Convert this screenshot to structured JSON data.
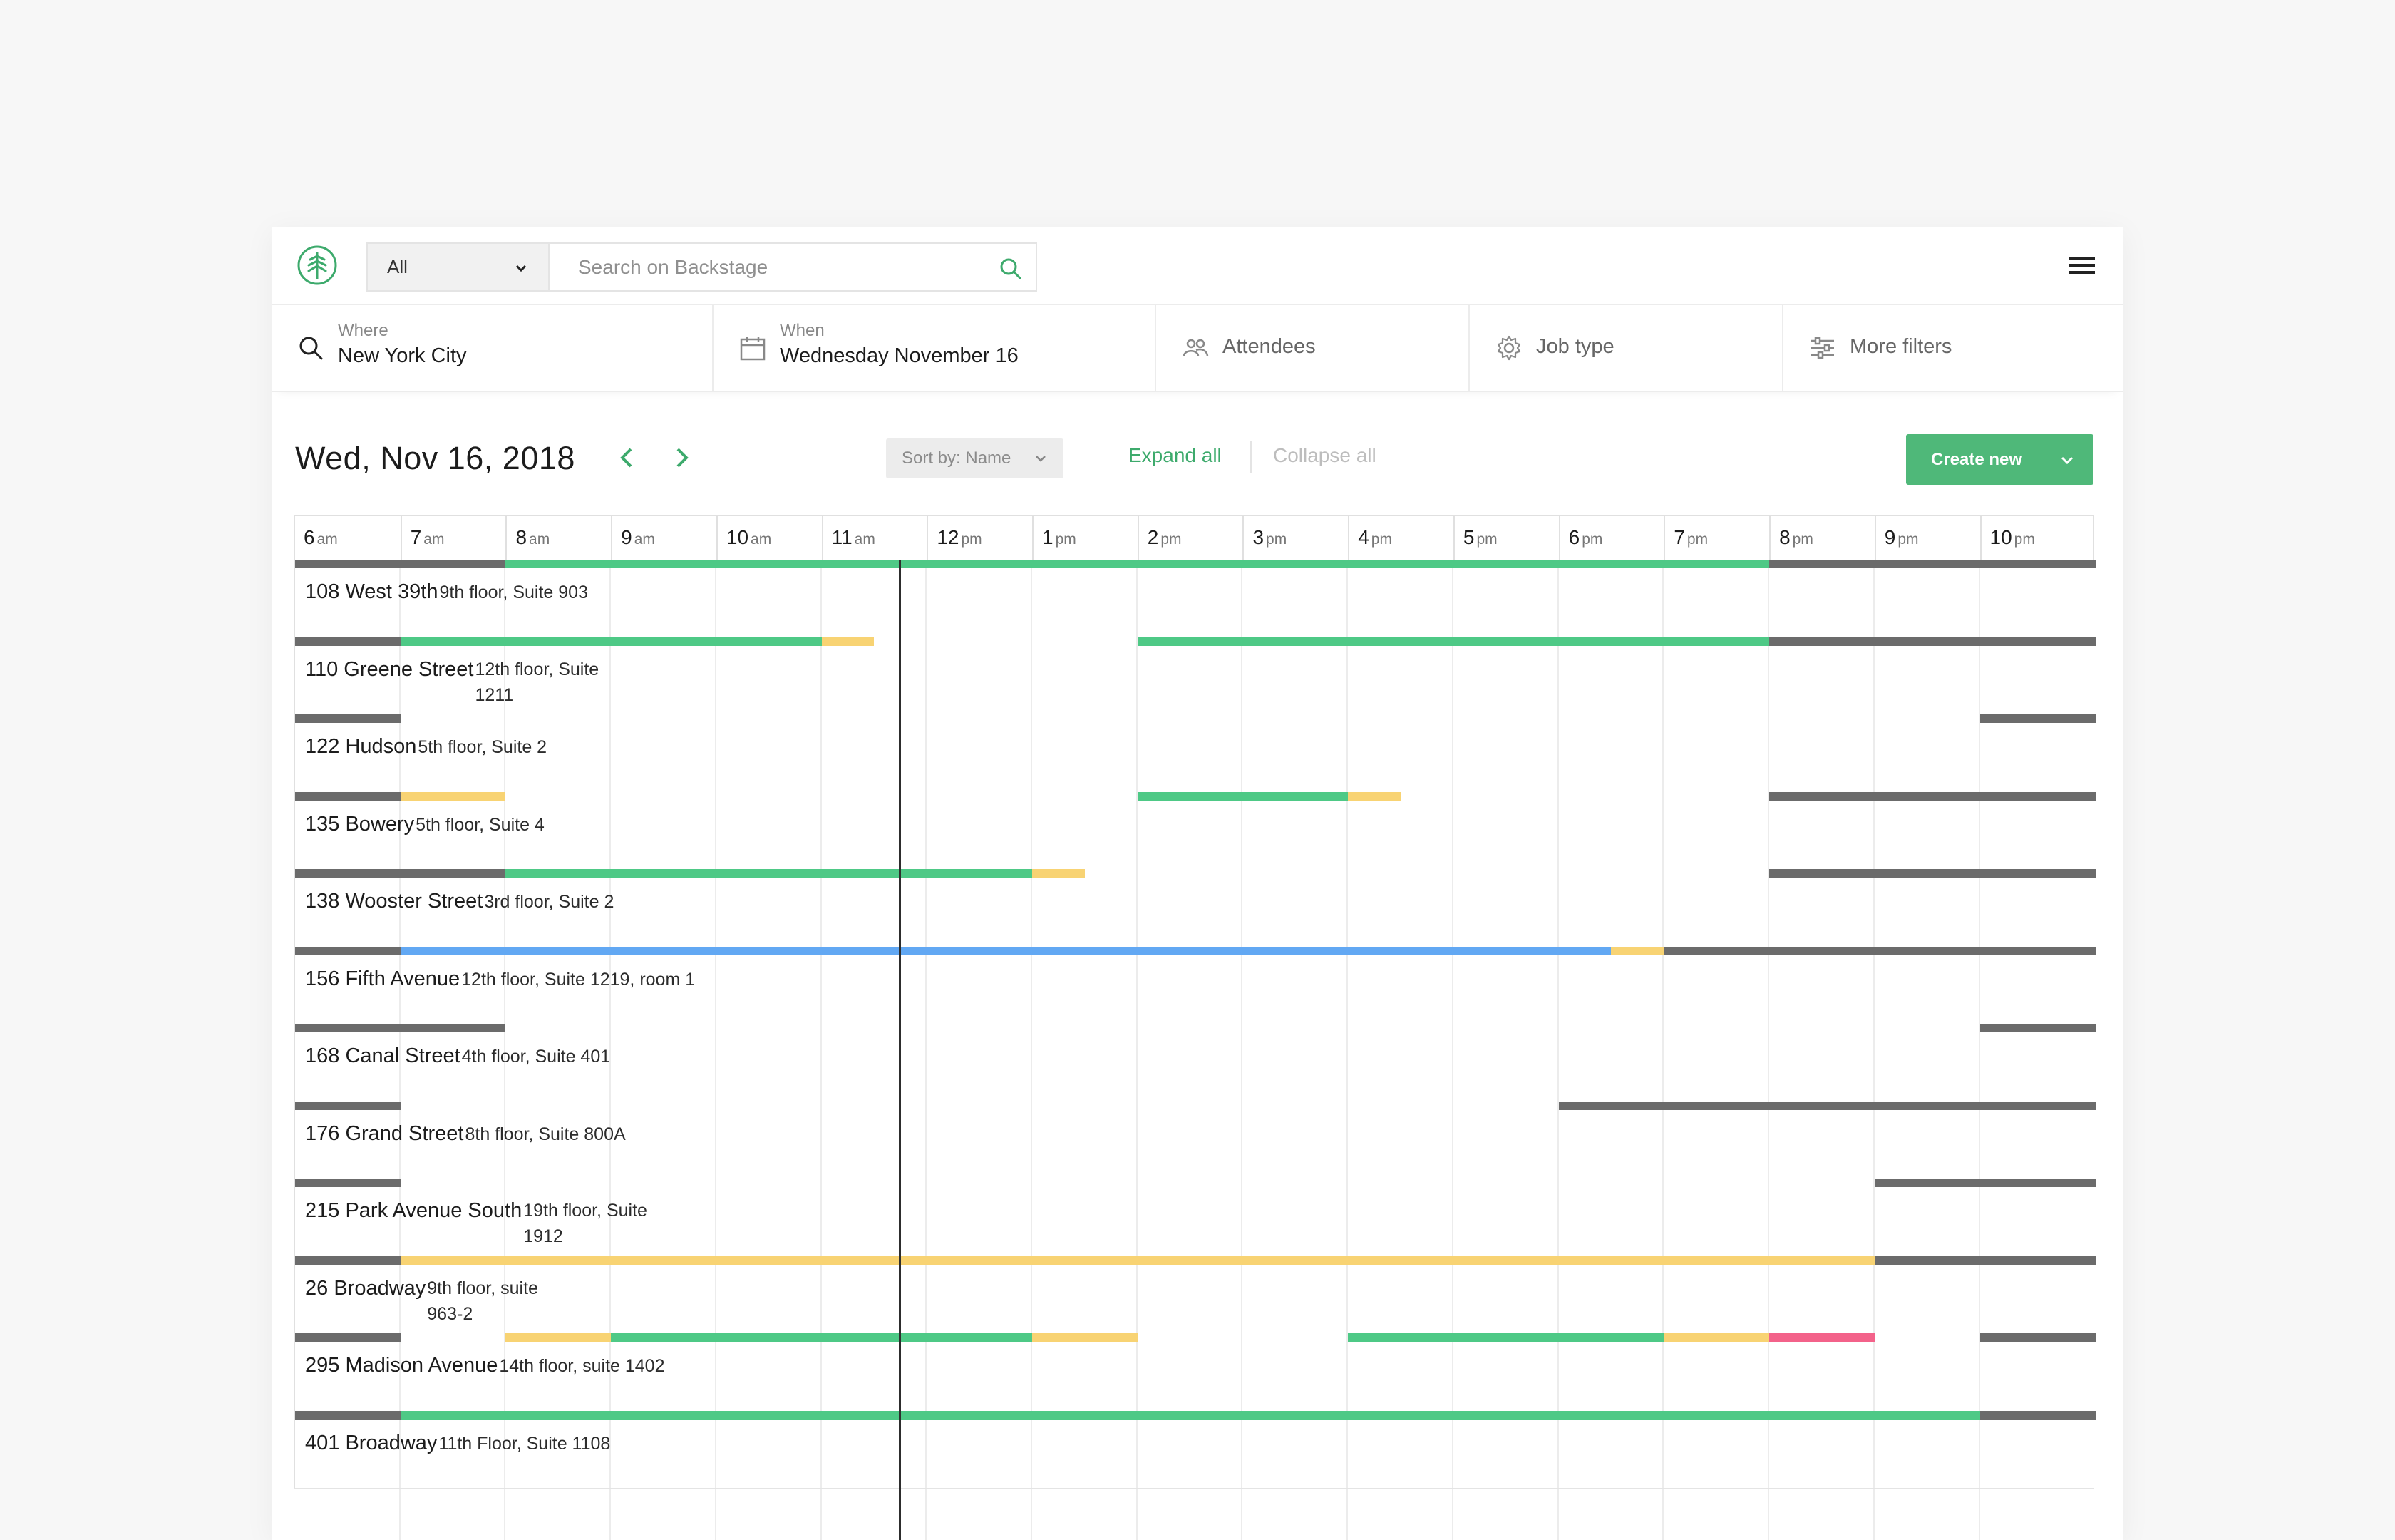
{
  "topbar": {
    "scope_value": "All",
    "search_placeholder": "Search on Backstage"
  },
  "filters": {
    "where_label": "Where",
    "where_value": "New York City",
    "when_label": "When",
    "when_value": "Wednesday November 16",
    "attendees": "Attendees",
    "job_type": "Job type",
    "more_filters": "More filters"
  },
  "schedule": {
    "date_title": "Wed, Nov 16, 2018",
    "sort_label": "Sort by: Name",
    "expand_all": "Expand all",
    "collapse_all": "Collapse all",
    "create_new": "Create new",
    "hours": [
      {
        "n": "6",
        "m": "am"
      },
      {
        "n": "7",
        "m": "am"
      },
      {
        "n": "8",
        "m": "am"
      },
      {
        "n": "9",
        "m": "am"
      },
      {
        "n": "10",
        "m": "am"
      },
      {
        "n": "11",
        "m": "am"
      },
      {
        "n": "12",
        "m": "pm"
      },
      {
        "n": "1",
        "m": "pm"
      },
      {
        "n": "2",
        "m": "pm"
      },
      {
        "n": "3",
        "m": "pm"
      },
      {
        "n": "4",
        "m": "pm"
      },
      {
        "n": "5",
        "m": "pm"
      },
      {
        "n": "6",
        "m": "pm"
      },
      {
        "n": "7",
        "m": "pm"
      },
      {
        "n": "8",
        "m": "pm"
      },
      {
        "n": "9",
        "m": "pm"
      },
      {
        "n": "10",
        "m": "pm"
      }
    ],
    "timeline_start_hour": 6,
    "timeline_end_hour": 23.1,
    "current_time_hour": 11.75,
    "colors": {
      "gray": "#6b6b6b",
      "green": "#4ec986",
      "yellow": "#f8d373",
      "blue": "#62a8f3",
      "pink": "#f3628a"
    },
    "locations": [
      {
        "name": "108 West 39th",
        "detail": "9th floor, Suite 903",
        "wrap": false,
        "segments": [
          [
            "gray",
            6,
            8
          ],
          [
            "green",
            8,
            20
          ],
          [
            "gray",
            20,
            23.1
          ]
        ]
      },
      {
        "name": "110 Greene Street",
        "detail": "12th floor, Suite 1211",
        "wrap": true,
        "segments": [
          [
            "gray",
            6,
            7
          ],
          [
            "green",
            7,
            11
          ],
          [
            "yellow",
            11,
            11.5
          ],
          [
            "green",
            14,
            20
          ],
          [
            "gray",
            20,
            23.1
          ]
        ]
      },
      {
        "name": "122 Hudson",
        "detail": "5th floor, Suite 2",
        "wrap": false,
        "segments": [
          [
            "gray",
            6,
            7
          ],
          [
            "gray",
            22,
            23.1
          ]
        ]
      },
      {
        "name": "135 Bowery",
        "detail": "5th floor, Suite 4",
        "wrap": false,
        "segments": [
          [
            "gray",
            6,
            7
          ],
          [
            "yellow",
            7,
            8
          ],
          [
            "green",
            14,
            16
          ],
          [
            "yellow",
            16,
            16.5
          ],
          [
            "gray",
            20,
            23.1
          ]
        ]
      },
      {
        "name": "138 Wooster Street",
        "detail": "3rd floor, Suite 2",
        "wrap": false,
        "segments": [
          [
            "gray",
            6,
            8
          ],
          [
            "green",
            8,
            13
          ],
          [
            "yellow",
            13,
            13.5
          ],
          [
            "gray",
            20,
            23.1
          ]
        ]
      },
      {
        "name": "156 Fifth Avenue",
        "detail": "12th floor, Suite 1219, room 1",
        "wrap": false,
        "segments": [
          [
            "gray",
            6,
            7
          ],
          [
            "blue",
            7,
            18.5
          ],
          [
            "yellow",
            18.5,
            19
          ],
          [
            "gray",
            19,
            23.1
          ]
        ]
      },
      {
        "name": "168 Canal Street",
        "detail": "4th floor, Suite 401",
        "wrap": false,
        "segments": [
          [
            "gray",
            6,
            8
          ],
          [
            "gray",
            22,
            23.1
          ]
        ]
      },
      {
        "name": "176 Grand Street",
        "detail": "8th floor, Suite 800A",
        "wrap": false,
        "segments": [
          [
            "gray",
            6,
            7
          ],
          [
            "gray",
            18,
            23.1
          ]
        ]
      },
      {
        "name": "215 Park Avenue South",
        "detail": "19th floor, Suite 1912",
        "wrap": true,
        "segments": [
          [
            "gray",
            6,
            7
          ],
          [
            "gray",
            21,
            23.1
          ]
        ]
      },
      {
        "name": "26 Broadway",
        "detail": "9th floor, suite 963-2",
        "wrap": true,
        "segments": [
          [
            "gray",
            6,
            7
          ],
          [
            "yellow",
            7,
            21
          ],
          [
            "gray",
            21,
            23.1
          ]
        ]
      },
      {
        "name": "295 Madison Avenue",
        "detail": "14th floor, suite 1402",
        "wrap": false,
        "segments": [
          [
            "gray",
            6,
            7
          ],
          [
            "yellow",
            8,
            9
          ],
          [
            "green",
            9,
            13
          ],
          [
            "yellow",
            13,
            14
          ],
          [
            "green",
            16,
            19
          ],
          [
            "yellow",
            19,
            20
          ],
          [
            "pink",
            20,
            21
          ],
          [
            "gray",
            22,
            23.1
          ]
        ]
      },
      {
        "name": "401 Broadway",
        "detail": "11th Floor, Suite 1108",
        "wrap": false,
        "segments": [
          [
            "gray",
            6,
            7
          ],
          [
            "green",
            7,
            22
          ],
          [
            "gray",
            22,
            23.1
          ]
        ]
      }
    ]
  }
}
